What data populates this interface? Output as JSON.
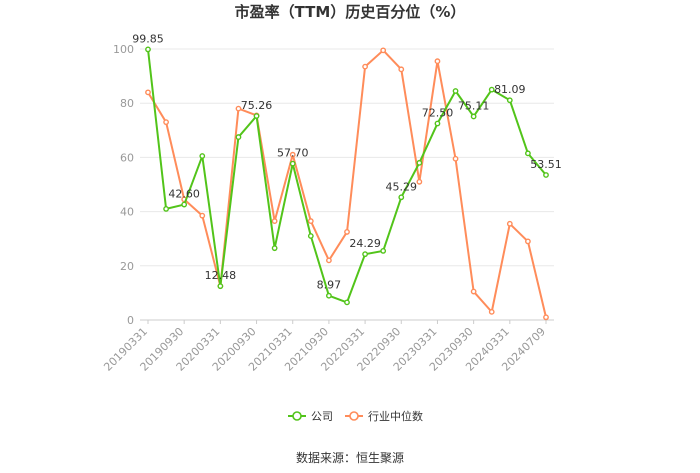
{
  "chart_data": {
    "type": "line",
    "title": "市盈率（TTM）历史百分位（%）",
    "xlabel": "",
    "ylabel": "",
    "ylim": [
      0,
      100
    ],
    "yticks": [
      0,
      20,
      40,
      60,
      80,
      100
    ],
    "grid": true,
    "legend_position": "bottom",
    "x": [
      "20190331",
      "20190630",
      "20190930",
      "20191231",
      "20200331",
      "20200630",
      "20200930",
      "20201231",
      "20210331",
      "20210630",
      "20210930",
      "20211231",
      "20220331",
      "20220630",
      "20220930",
      "20221231",
      "20230331",
      "20230630",
      "20230930",
      "20231231",
      "20240331",
      "20240630",
      "20240709"
    ],
    "x_tick_labels": [
      "20190331",
      "20190930",
      "20200331",
      "20200930",
      "20210331",
      "20210930",
      "20220331",
      "20220930",
      "20230331",
      "20230930",
      "20240331",
      "20240709"
    ],
    "series": [
      {
        "name": "公司",
        "color": "#52c41a",
        "values": [
          99.85,
          41,
          42.6,
          60.5,
          12.48,
          67.5,
          75.26,
          26.5,
          57.7,
          31,
          8.97,
          6.5,
          24.29,
          25.5,
          45.29,
          58,
          72.5,
          84.5,
          75.11,
          85,
          81.09,
          61.5,
          53.51
        ],
        "labels": [
          "99.85",
          "",
          "42.60",
          "",
          "12.48",
          "",
          "75.26",
          "",
          "57.70",
          "",
          "8.97",
          "",
          "24.29",
          "",
          "45.29",
          "",
          "72.50",
          "",
          "75.11",
          "",
          "81.09",
          "",
          "53.51"
        ]
      },
      {
        "name": "行业中位数",
        "color": "#ff8c5a",
        "values": [
          84,
          73,
          44.5,
          38.5,
          12.5,
          78,
          75.5,
          36.5,
          61,
          36.5,
          22,
          32.5,
          93.5,
          99.5,
          92.5,
          51,
          95.5,
          59.5,
          10.5,
          3,
          35.5,
          29,
          1
        ]
      }
    ]
  },
  "footer": {
    "source": "数据来源：恒生聚源"
  }
}
